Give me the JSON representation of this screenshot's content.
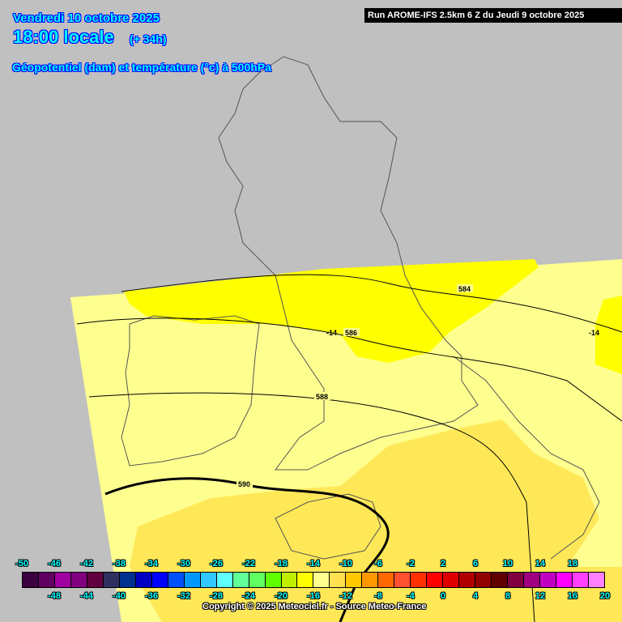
{
  "header": {
    "date": "Vendredi 10 octobre 2025",
    "time": "18:00 locale",
    "lead": "(+ 34h)",
    "parameter": "Géopotentiel (dam) et température (°c) à 500hPa",
    "run": "Run AROME-IFS 2.5km 6 Z du Jeudi 9 octobre 2025"
  },
  "map": {
    "background_color": "#c0c0c0",
    "contours": {
      "geopotential_labels": [
        "584",
        "586",
        "588",
        "590"
      ],
      "temperature_labels": [
        "-14",
        "-14"
      ]
    }
  },
  "legend": {
    "unit": "°c",
    "top_labels": [
      "-50",
      "-46",
      "-42",
      "-38",
      "-34",
      "-30",
      "-26",
      "-22",
      "-18",
      "-14",
      "-10",
      "-6",
      "-2",
      "2",
      "6",
      "10",
      "14",
      "18"
    ],
    "bottom_labels": [
      "-48",
      "-44",
      "-40",
      "-36",
      "-32",
      "-28",
      "-24",
      "-20",
      "-16",
      "-12",
      "-8",
      "-4",
      "0",
      "4",
      "8",
      "12",
      "16",
      "20"
    ],
    "colors": [
      "#3a0040",
      "#600060",
      "#a000a0",
      "#800080",
      "#600040",
      "#303060",
      "#003090",
      "#0000c0",
      "#0000ff",
      "#0050ff",
      "#0098ff",
      "#30c8ff",
      "#60ffff",
      "#60ff98",
      "#60ff60",
      "#60ff00",
      "#c0f000",
      "#ffff00",
      "#ffff90",
      "#ffe050",
      "#ffc800",
      "#ff9800",
      "#ff6800",
      "#ff5030",
      "#ff3000",
      "#ff0000",
      "#e00000",
      "#b00000",
      "#900000",
      "#600000",
      "#800040",
      "#a00080",
      "#c000c0",
      "#ff00ff",
      "#ff40ff",
      "#ff80ff"
    ]
  },
  "copyright": "Copyright © 2025 Meteociel.fr - Source Meteo-France"
}
